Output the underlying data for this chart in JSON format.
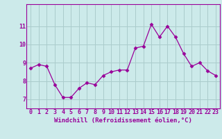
{
  "x": [
    0,
    1,
    2,
    3,
    4,
    5,
    6,
    7,
    8,
    9,
    10,
    11,
    12,
    13,
    14,
    15,
    16,
    17,
    18,
    19,
    20,
    21,
    22,
    23
  ],
  "y": [
    8.7,
    8.9,
    8.8,
    7.8,
    7.1,
    7.1,
    7.6,
    7.9,
    7.8,
    8.3,
    8.5,
    8.6,
    8.6,
    9.8,
    9.9,
    11.1,
    10.4,
    11.0,
    10.4,
    9.5,
    8.8,
    9.0,
    8.55,
    8.3
  ],
  "line_color": "#990099",
  "marker": "D",
  "marker_size": 2.5,
  "bg_color": "#cceaea",
  "grid_color": "#aacccc",
  "xlabel": "Windchill (Refroidissement éolien,°C)",
  "xlabel_fontsize": 6.5,
  "tick_fontsize": 6,
  "ylim_min": 6.5,
  "ylim_max": 12.2,
  "yticks": [
    7,
    8,
    9,
    10,
    11
  ],
  "xticks": [
    0,
    1,
    2,
    3,
    4,
    5,
    6,
    7,
    8,
    9,
    10,
    11,
    12,
    13,
    14,
    15,
    16,
    17,
    18,
    19,
    20,
    21,
    22,
    23
  ]
}
